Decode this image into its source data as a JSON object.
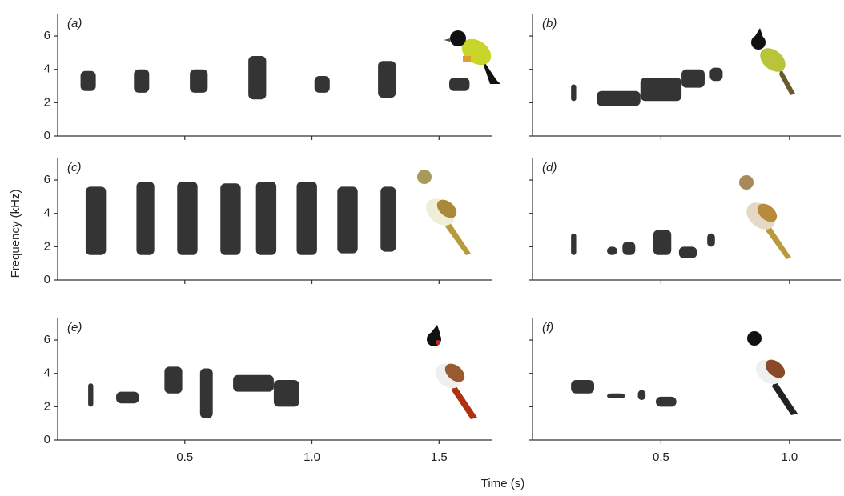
{
  "figure": {
    "xlabel": "Time (s)",
    "ylabel": "Frequency (kHz)"
  },
  "chart_data": [
    {
      "type": "spectrogram",
      "label": "(a)",
      "xlim": [
        0,
        1.71
      ],
      "ylim": [
        0,
        7.3
      ],
      "yticks": [
        0,
        2,
        4,
        6
      ],
      "xticks": [
        0.5,
        {
          "value": 1,
          "label": "1.0"
        },
        1.5
      ],
      "ytick_labels": true,
      "xtick_labels": false,
      "syllables": [
        {
          "t": [
            0.09,
            0.15
          ],
          "f": [
            2.7,
            3.9
          ]
        },
        {
          "t": [
            0.3,
            0.36
          ],
          "f": [
            2.6,
            4
          ]
        },
        {
          "t": [
            0.52,
            0.59
          ],
          "f": [
            2.6,
            4
          ]
        },
        {
          "t": [
            0.75,
            0.82
          ],
          "f": [
            2.2,
            4.8
          ]
        },
        {
          "t": [
            1.01,
            1.07
          ],
          "f": [
            2.6,
            3.6
          ]
        },
        {
          "t": [
            1.26,
            1.33
          ],
          "f": [
            2.3,
            4.5
          ]
        },
        {
          "t": [
            1.54,
            1.62
          ],
          "f": [
            2.7,
            3.5
          ]
        }
      ]
    },
    {
      "type": "spectrogram",
      "label": "(b)",
      "xlim": [
        0,
        1.2
      ],
      "ylim": [
        0,
        7.3
      ],
      "yticks": [
        0,
        2,
        4,
        6
      ],
      "xticks": [
        0.5,
        {
          "value": 1,
          "label": "1.0"
        }
      ],
      "ytick_labels": false,
      "xtick_labels": false,
      "syllables": [
        {
          "t": [
            0.15,
            0.17
          ],
          "f": [
            2.1,
            3.1
          ]
        },
        {
          "t": [
            0.25,
            0.42
          ],
          "f": [
            1.8,
            2.7
          ]
        },
        {
          "t": [
            0.42,
            0.58
          ],
          "f": [
            2.1,
            3.5
          ]
        },
        {
          "t": [
            0.58,
            0.67
          ],
          "f": [
            2.9,
            4
          ]
        },
        {
          "t": [
            0.69,
            0.74
          ],
          "f": [
            3.3,
            4.1
          ]
        }
      ]
    },
    {
      "type": "spectrogram",
      "label": "(c)",
      "xlim": [
        0,
        1.71
      ],
      "ylim": [
        0,
        7.3
      ],
      "yticks": [
        0,
        2,
        4,
        6
      ],
      "xticks": [
        0.5,
        {
          "value": 1,
          "label": "1.0"
        },
        1.5
      ],
      "ytick_labels": true,
      "xtick_labels": false,
      "syllables": [
        {
          "t": [
            0.11,
            0.19
          ],
          "f": [
            1.5,
            5.6
          ]
        },
        {
          "t": [
            0.31,
            0.38
          ],
          "f": [
            1.5,
            5.9
          ]
        },
        {
          "t": [
            0.47,
            0.55
          ],
          "f": [
            1.5,
            5.9
          ]
        },
        {
          "t": [
            0.64,
            0.72
          ],
          "f": [
            1.5,
            5.8
          ]
        },
        {
          "t": [
            0.78,
            0.86
          ],
          "f": [
            1.5,
            5.9
          ]
        },
        {
          "t": [
            0.94,
            1.02
          ],
          "f": [
            1.5,
            5.9
          ]
        },
        {
          "t": [
            1.1,
            1.18
          ],
          "f": [
            1.6,
            5.6
          ]
        },
        {
          "t": [
            1.27,
            1.33
          ],
          "f": [
            1.7,
            5.6
          ]
        }
      ]
    },
    {
      "type": "spectrogram",
      "label": "(d)",
      "xlim": [
        0,
        1.2
      ],
      "ylim": [
        0,
        7.3
      ],
      "yticks": [
        0,
        2,
        4,
        6
      ],
      "xticks": [
        0.5,
        {
          "value": 1,
          "label": "1.0"
        }
      ],
      "ytick_labels": false,
      "xtick_labels": false,
      "syllables": [
        {
          "t": [
            0.15,
            0.17
          ],
          "f": [
            1.5,
            2.8
          ]
        },
        {
          "t": [
            0.29,
            0.33
          ],
          "f": [
            1.5,
            2
          ]
        },
        {
          "t": [
            0.35,
            0.4
          ],
          "f": [
            1.5,
            2.3
          ]
        },
        {
          "t": [
            0.47,
            0.54
          ],
          "f": [
            1.5,
            3
          ]
        },
        {
          "t": [
            0.57,
            0.64
          ],
          "f": [
            1.3,
            2
          ]
        },
        {
          "t": [
            0.68,
            0.71
          ],
          "f": [
            2,
            2.8
          ]
        }
      ]
    },
    {
      "type": "spectrogram",
      "label": "(e)",
      "xlim": [
        0,
        1.71
      ],
      "ylim": [
        0,
        7.3
      ],
      "yticks": [
        0,
        2,
        4,
        6
      ],
      "xticks": [
        0.5,
        {
          "value": 1,
          "label": "1.0"
        },
        1.5
      ],
      "ytick_labels": true,
      "xtick_labels": true,
      "syllables": [
        {
          "t": [
            0.12,
            0.14
          ],
          "f": [
            2,
            3.4
          ]
        },
        {
          "t": [
            0.23,
            0.32
          ],
          "f": [
            2.2,
            2.9
          ]
        },
        {
          "t": [
            0.42,
            0.49
          ],
          "f": [
            2.8,
            4.4
          ]
        },
        {
          "t": [
            0.56,
            0.61
          ],
          "f": [
            1.3,
            4.3
          ]
        },
        {
          "t": [
            0.69,
            0.85
          ],
          "f": [
            2.9,
            3.9
          ]
        },
        {
          "t": [
            0.85,
            0.95
          ],
          "f": [
            2,
            3.6
          ]
        }
      ]
    },
    {
      "type": "spectrogram",
      "label": "(f)",
      "xlim": [
        0,
        1.2
      ],
      "ylim": [
        0,
        7.3
      ],
      "yticks": [
        0,
        2,
        4,
        6
      ],
      "xticks": [
        0.5,
        {
          "value": 1,
          "label": "1.0"
        }
      ],
      "ytick_labels": false,
      "xtick_labels": true,
      "syllables": [
        {
          "t": [
            0.15,
            0.24
          ],
          "f": [
            2.8,
            3.6
          ]
        },
        {
          "t": [
            0.29,
            0.36
          ],
          "f": [
            2.5,
            2.8
          ]
        },
        {
          "t": [
            0.41,
            0.44
          ],
          "f": [
            2.4,
            3
          ]
        },
        {
          "t": [
            0.48,
            0.56
          ],
          "f": [
            2,
            2.6
          ]
        }
      ]
    }
  ]
}
